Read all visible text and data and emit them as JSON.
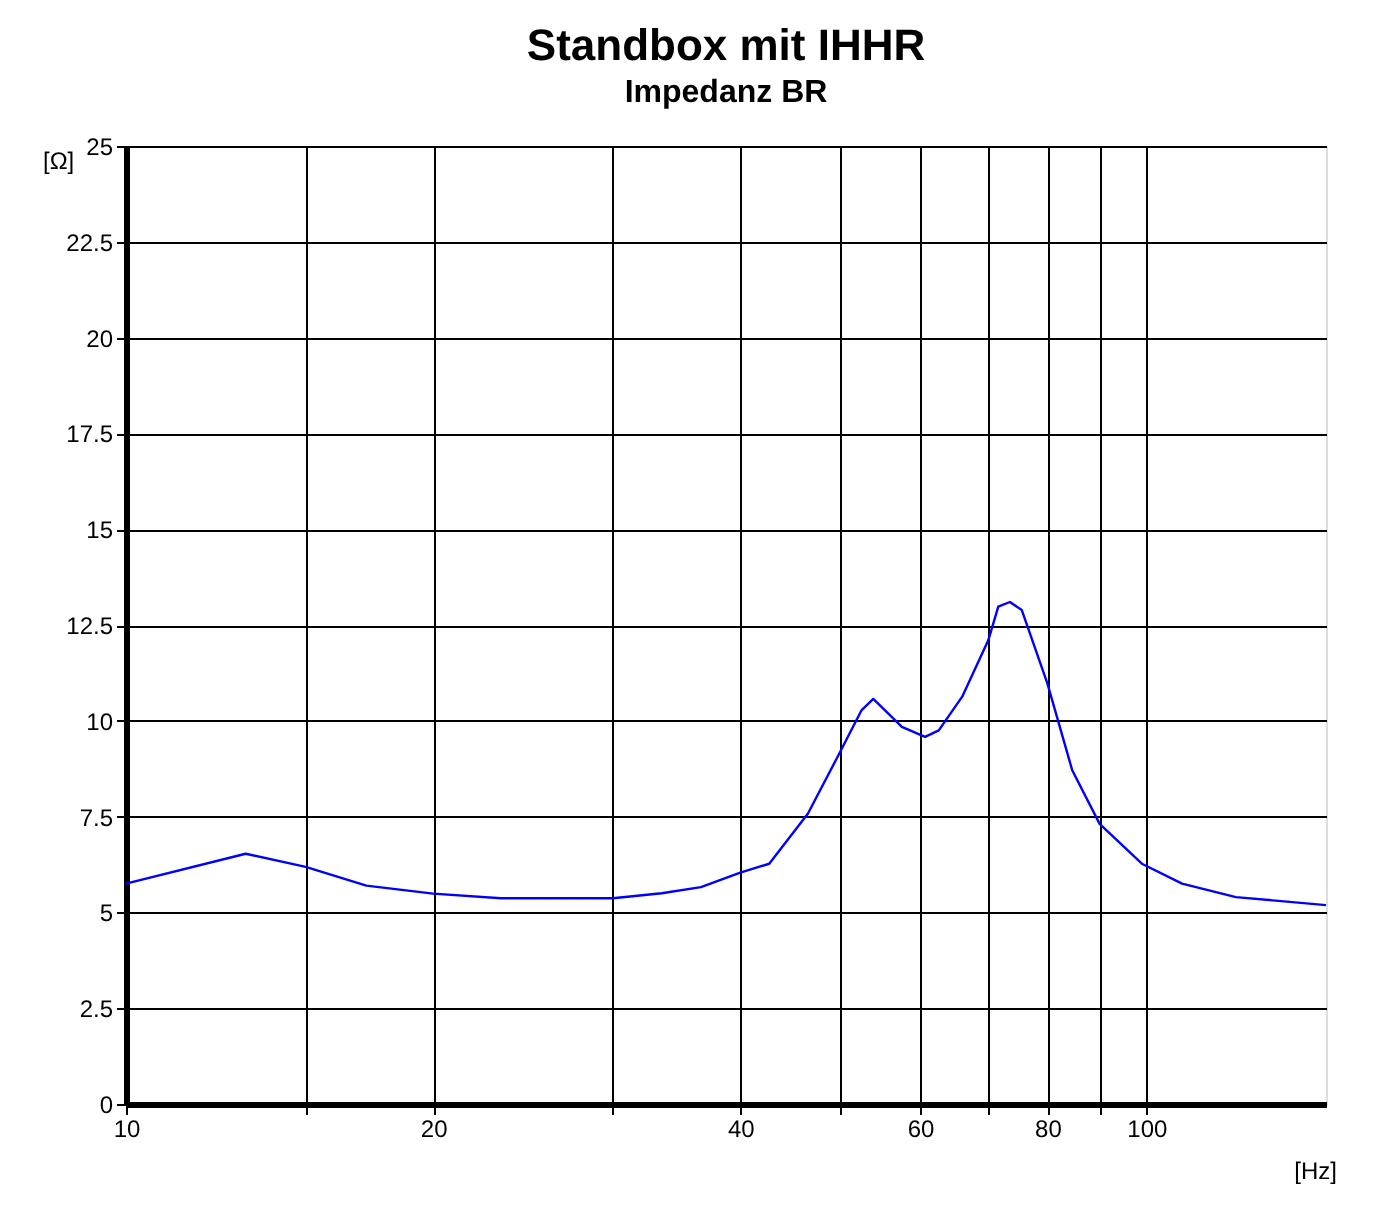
{
  "chart_data": {
    "type": "line",
    "title": "Standbox mit IHHR",
    "subtitle": "Impedanz BR",
    "xlabel": "[Hz]",
    "ylabel": "[Ω]",
    "log": "x",
    "grid": true,
    "marker": "none",
    "line_style": "solid",
    "xlim": [
      10,
      150
    ],
    "xticks": [
      10,
      {
        "value": 15,
        "label": null
      },
      20,
      {
        "value": 30,
        "label": null
      },
      40,
      {
        "value": 50,
        "label": null
      },
      60,
      {
        "value": 70,
        "label": null
      },
      80,
      {
        "value": 90,
        "label": null
      },
      100
    ],
    "ylim": [
      0,
      25
    ],
    "yticks": [
      0,
      2.5,
      5,
      7.5,
      10,
      12.5,
      15,
      17.5,
      20,
      22.5,
      25
    ],
    "series": [
      {
        "color": "#0000ff",
        "x": [
          10,
          13.1,
          15,
          17.2,
          20,
          23.3,
          30,
          33.5,
          36.6,
          40,
          42.7,
          46.6,
          50,
          52.6,
          54,
          57.6,
          60.7,
          62.6,
          66,
          70,
          71.6,
          73.5,
          75.5,
          80,
          84.6,
          90,
          99,
          108.4,
          122.4,
          150
        ],
        "values": [
          5.75,
          6.53,
          6.19,
          5.7,
          5.49,
          5.37,
          5.37,
          5.5,
          5.66,
          6.04,
          6.27,
          7.58,
          9.14,
          10.28,
          10.57,
          9.84,
          9.58,
          9.75,
          10.63,
          12.1,
          12.98,
          13.1,
          12.89,
          10.97,
          8.71,
          7.31,
          6.27,
          5.75,
          5.4,
          5.19
        ]
      }
    ]
  }
}
